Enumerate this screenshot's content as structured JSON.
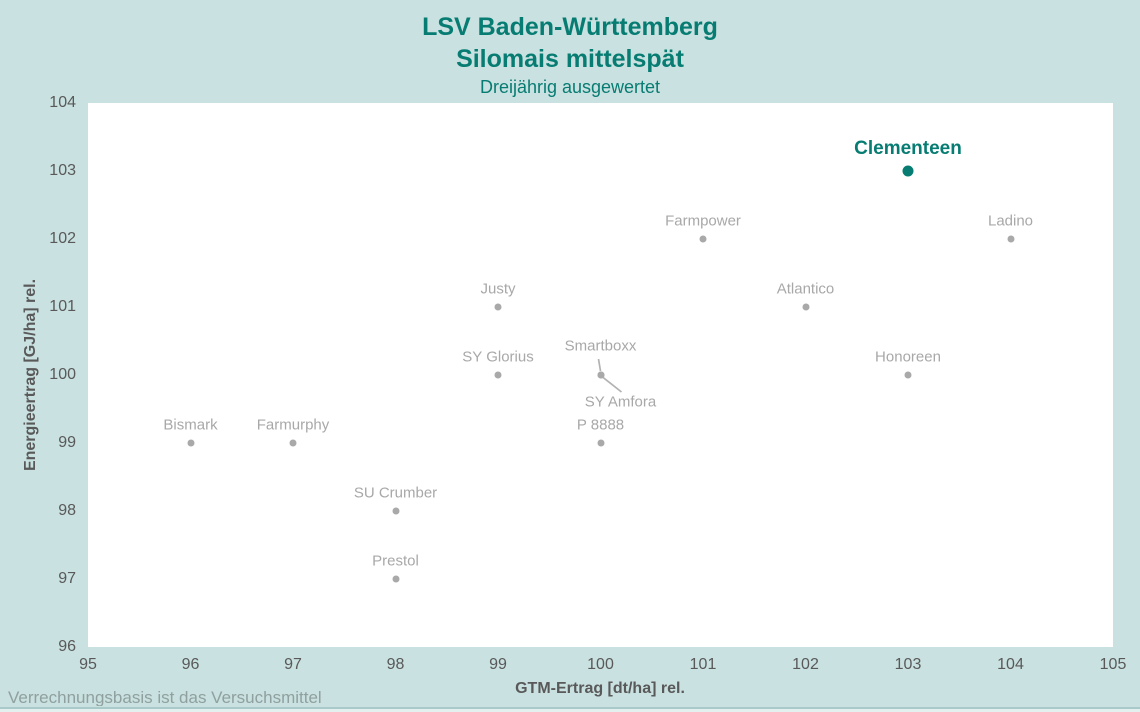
{
  "header": {
    "title_line1": "LSV Baden-Württemberg",
    "title_line2": "Silomais mittelspät",
    "subtitle": "Dreijährig ausgewertet"
  },
  "footer": {
    "note": "Verrechnungsbasis ist das Versuchsmittel"
  },
  "colors": {
    "background": "#c9e1e0",
    "accent_teal": "#077c72",
    "muted_gray": "#a8a8a8",
    "axis_text": "#595959"
  },
  "chart_data": {
    "type": "scatter",
    "title": "LSV Baden-Württemberg",
    "subtitle2": "Silomais mittelspät",
    "subtitle3": "Dreijährig ausgewertet",
    "xlabel": "GTM-Ertrag [dt/ha] rel.",
    "ylabel": "Energieertrag [GJ/ha] rel.",
    "xlim": [
      95,
      105
    ],
    "ylim": [
      96,
      104
    ],
    "x_ticks": [
      95,
      96,
      97,
      98,
      99,
      100,
      101,
      102,
      103,
      104,
      105
    ],
    "y_ticks": [
      104,
      103,
      102,
      101,
      100,
      99,
      98,
      97,
      96
    ],
    "grid": false,
    "legend_position": "none",
    "note": "Verrechnungsbasis ist das Versuchsmittel",
    "points": [
      {
        "name": "Clementeen",
        "x": 103,
        "y": 103,
        "highlight": true,
        "label_dy": -22
      },
      {
        "name": "Farmpower",
        "x": 101,
        "y": 102
      },
      {
        "name": "Ladino",
        "x": 104,
        "y": 102
      },
      {
        "name": "Justy",
        "x": 99,
        "y": 101
      },
      {
        "name": "Atlantico",
        "x": 102,
        "y": 101
      },
      {
        "name": "SY Glorius",
        "x": 99,
        "y": 100
      },
      {
        "name": "Smartboxx",
        "x": 100,
        "y": 100,
        "label_dy": -29,
        "leader": [
          [
            -2,
            -16
          ],
          [
            0,
            -4
          ]
        ]
      },
      {
        "name": "SY Amfora",
        "x": 100,
        "y": 100,
        "label_dx": 20,
        "label_dy": 27,
        "leader": [
          [
            2,
            2
          ],
          [
            21,
            17
          ]
        ]
      },
      {
        "name": "Honoreen",
        "x": 103,
        "y": 100
      },
      {
        "name": "Bismark",
        "x": 96,
        "y": 99
      },
      {
        "name": "Farmurphy",
        "x": 97,
        "y": 99
      },
      {
        "name": "P 8888",
        "x": 100,
        "y": 99
      },
      {
        "name": "SU Crumber",
        "x": 98,
        "y": 98
      },
      {
        "name": "Prestol",
        "x": 98,
        "y": 97
      }
    ]
  }
}
